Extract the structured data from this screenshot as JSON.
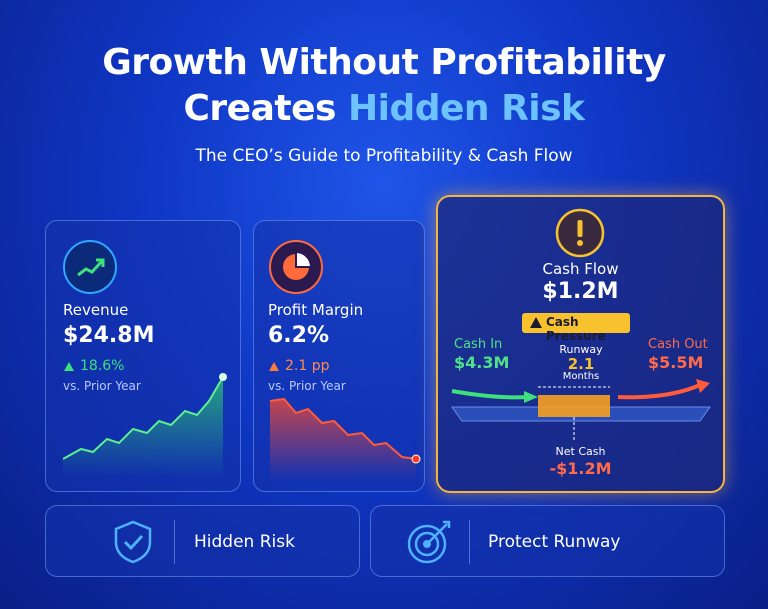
{
  "header": {
    "title_line1": "Growth Without Profitability",
    "title_line2_plain": "Creates",
    "title_line2_highlight": "Hidden Risk",
    "subtitle": "The CEO’s Guide to Profitability & Cash Flow"
  },
  "cards": [
    {
      "label": "Revenue",
      "value": "$24.8M",
      "change": "18.6%",
      "note": "vs. Prior Year"
    },
    {
      "label": "Profit Margin",
      "value": "6.2%",
      "change": "2.1 pp",
      "note": "vs. Prior Year"
    }
  ],
  "cash_flow": {
    "label": "Cash Flow",
    "value": "$1.2M",
    "badge": "Cash Pressure",
    "cash_in_label": "Cash In",
    "cash_in_value": "$4.3M",
    "runway_label": "Runway",
    "runway_value": "2.1",
    "runway_unit": "Months",
    "cash_out_label": "Cash Out",
    "cash_out_value": "$5.5M",
    "net_cash_label": "Net Cash",
    "net_cash_value": "-$1.2M"
  },
  "footer": [
    {
      "label": "Hidden Risk"
    },
    {
      "label": "Protect Runway"
    }
  ]
}
